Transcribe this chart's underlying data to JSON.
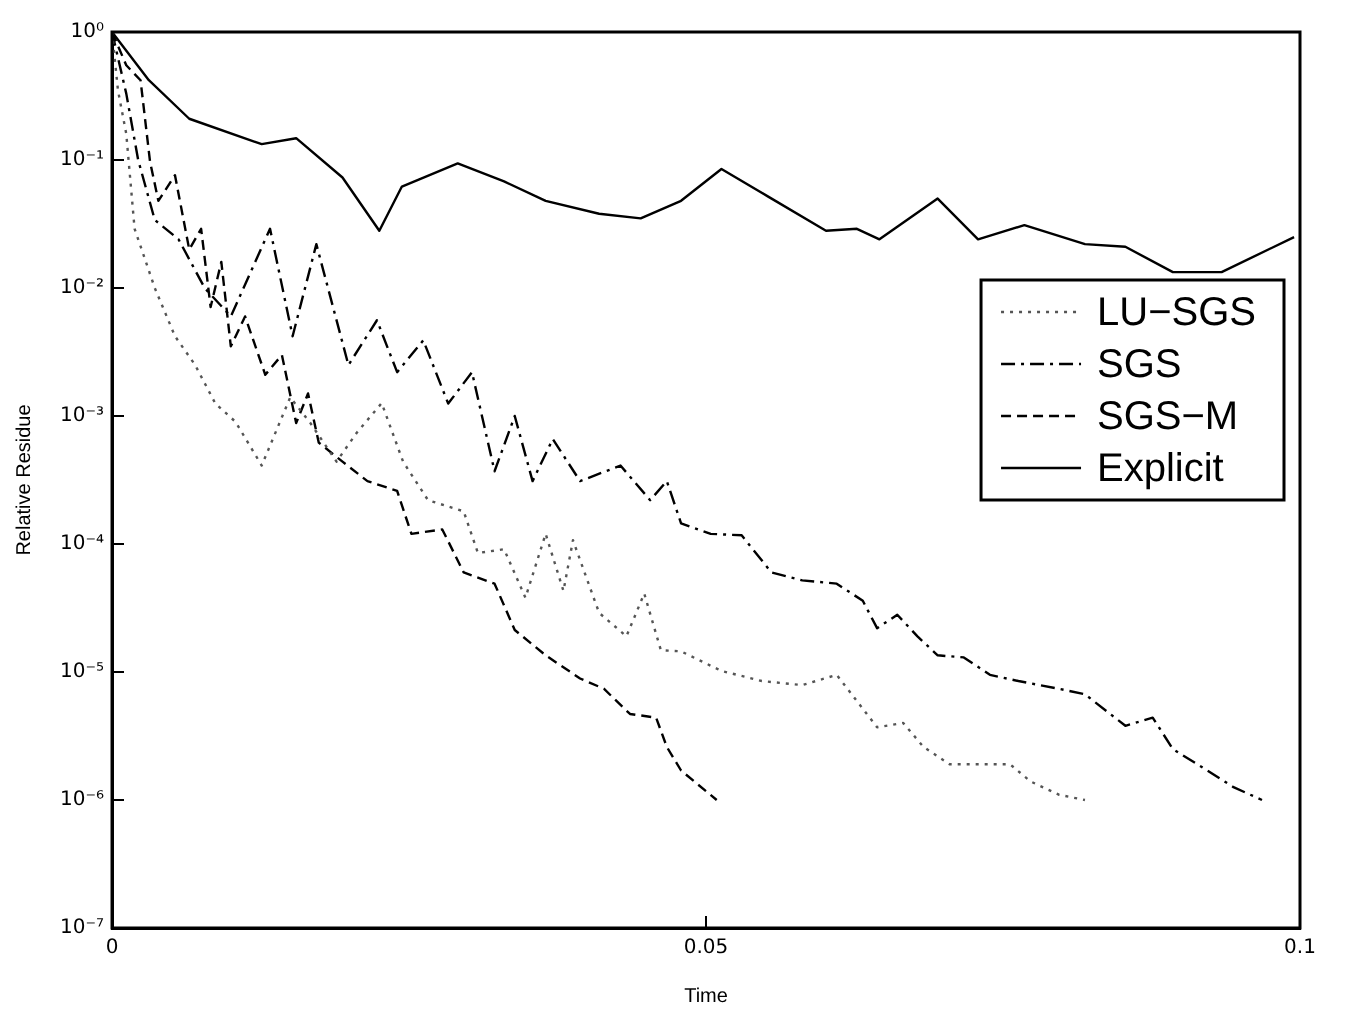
{
  "chart_data": {
    "type": "line",
    "xlabel": "Time",
    "ylabel": "Relative Residue",
    "log": "y",
    "grid": false,
    "legend": "right",
    "xlim": [
      0,
      0.1
    ],
    "xticks": [
      0,
      0.05,
      0.1
    ],
    "ylim": [
      1e-07,
      1
    ],
    "yticks": [
      {
        "value": 1e-07,
        "label": "10⁻⁷"
      },
      {
        "value": 1e-06,
        "label": "10⁻⁶"
      },
      {
        "value": 1e-05,
        "label": "10⁻⁵"
      },
      {
        "value": 0.0001,
        "label": "10⁻⁴"
      },
      {
        "value": 0.001,
        "label": "10⁻³"
      },
      {
        "value": 0.01,
        "label": "10⁻²"
      },
      {
        "value": 0.1,
        "label": "10⁻¹"
      },
      {
        "value": 1,
        "label": "10⁰"
      }
    ],
    "series": [
      {
        "name": "LU−SGS",
        "color": "#555555",
        "line_style": "dotted",
        "x": [
          0,
          0.0005,
          0.0012,
          0.0019,
          0.0036,
          0.0053,
          0.007,
          0.0087,
          0.0104,
          0.0126,
          0.015,
          0.0167,
          0.0189,
          0.0206,
          0.0227,
          0.0245,
          0.0266,
          0.0296,
          0.0308,
          0.033,
          0.0348,
          0.0365,
          0.038,
          0.0388,
          0.041,
          0.0433,
          0.0448,
          0.0462,
          0.0479,
          0.0513,
          0.0547,
          0.0581,
          0.061,
          0.062,
          0.0644,
          0.0666,
          0.0683,
          0.0705,
          0.0756,
          0.0773,
          0.0797,
          0.0819
        ],
        "values": [
          1,
          0.35,
          0.16,
          0.029,
          0.01,
          0.0042,
          0.0025,
          0.00125,
          0.0009,
          0.00041,
          0.0014,
          0.00088,
          0.00044,
          0.00074,
          0.00126,
          0.00044,
          0.00022,
          0.00018,
          8.5e-05,
          9.1e-05,
          3.8e-05,
          0.00012,
          4.3e-05,
          0.000107,
          2.9e-05,
          1.9e-05,
          4.1e-05,
          1.48e-05,
          1.45e-05,
          1.02e-05,
          8.5e-06,
          7.9e-06,
          9.5e-06,
          7.2e-06,
          3.7e-06,
          4e-06,
          2.6e-06,
          1.9e-06,
          1.9e-06,
          1.4e-06,
          1.1e-06,
          1e-06
        ]
      },
      {
        "name": "SGS",
        "color": "#000000",
        "line_style": "dashdot",
        "x": [
          0,
          0.0012,
          0.0022,
          0.0036,
          0.0056,
          0.0078,
          0.01,
          0.0133,
          0.0152,
          0.0172,
          0.0199,
          0.0223,
          0.024,
          0.0262,
          0.0283,
          0.0303,
          0.0322,
          0.0339,
          0.0354,
          0.0371,
          0.0394,
          0.0428,
          0.0453,
          0.0467,
          0.0479,
          0.0504,
          0.053,
          0.0555,
          0.0581,
          0.061,
          0.0632,
          0.0644,
          0.0661,
          0.0678,
          0.0695,
          0.0717,
          0.0739,
          0.0763,
          0.0797,
          0.0819,
          0.0853,
          0.0876,
          0.0893,
          0.0922,
          0.0944,
          0.0968
        ],
        "values": [
          1,
          0.33,
          0.1,
          0.034,
          0.024,
          0.01,
          0.006,
          0.029,
          0.0042,
          0.022,
          0.0025,
          0.0056,
          0.0022,
          0.0039,
          0.00125,
          0.0022,
          0.00037,
          0.001,
          0.00031,
          0.00066,
          0.00031,
          0.00041,
          0.00022,
          0.00031,
          0.000145,
          0.00012,
          0.000117,
          6e-05,
          5.2e-05,
          4.9e-05,
          3.6e-05,
          2.2e-05,
          2.8e-05,
          1.9e-05,
          1.35e-05,
          1.3e-05,
          9.5e-06,
          8.5e-06,
          7.4e-06,
          6.7e-06,
          3.8e-06,
          4.4e-06,
          2.5e-06,
          1.7e-06,
          1.26e-06,
          1e-06
        ]
      },
      {
        "name": "SGS−M",
        "color": "#000000",
        "line_style": "dashed",
        "x": [
          0,
          0.0012,
          0.0024,
          0.0032,
          0.0039,
          0.0053,
          0.0065,
          0.0075,
          0.0083,
          0.0092,
          0.01,
          0.0112,
          0.0129,
          0.0143,
          0.0155,
          0.0165,
          0.0174,
          0.0194,
          0.0215,
          0.024,
          0.0252,
          0.0278,
          0.0296,
          0.0322,
          0.0339,
          0.0365,
          0.0394,
          0.0414,
          0.0436,
          0.0458,
          0.0467,
          0.0479,
          0.0509
        ],
        "values": [
          1,
          0.55,
          0.42,
          0.097,
          0.048,
          0.076,
          0.02,
          0.029,
          0.0071,
          0.016,
          0.0035,
          0.006,
          0.0021,
          0.003,
          0.00088,
          0.0015,
          0.00062,
          0.00044,
          0.00031,
          0.00026,
          0.00012,
          0.00013,
          6e-05,
          4.9e-05,
          2.13e-05,
          1.35e-05,
          8.9e-06,
          7.4e-06,
          4.7e-06,
          4.4e-06,
          2.6e-06,
          1.7e-06,
          1e-06
        ]
      },
      {
        "name": "Explicit",
        "color": "#000000",
        "line_style": "solid",
        "x": [
          0,
          0.0031,
          0.0065,
          0.0126,
          0.0155,
          0.0194,
          0.0225,
          0.0244,
          0.0291,
          0.033,
          0.0365,
          0.041,
          0.0445,
          0.0479,
          0.0513,
          0.0552,
          0.0601,
          0.0627,
          0.0646,
          0.0695,
          0.0729,
          0.0768,
          0.0819,
          0.0853,
          0.0893,
          0.0934,
          0.0995
        ],
        "values": [
          1,
          0.42,
          0.21,
          0.133,
          0.148,
          0.073,
          0.028,
          0.062,
          0.094,
          0.068,
          0.048,
          0.038,
          0.035,
          0.048,
          0.085,
          0.052,
          0.028,
          0.029,
          0.024,
          0.05,
          0.024,
          0.031,
          0.022,
          0.021,
          0.0133,
          0.0133,
          0.025
        ]
      }
    ]
  }
}
